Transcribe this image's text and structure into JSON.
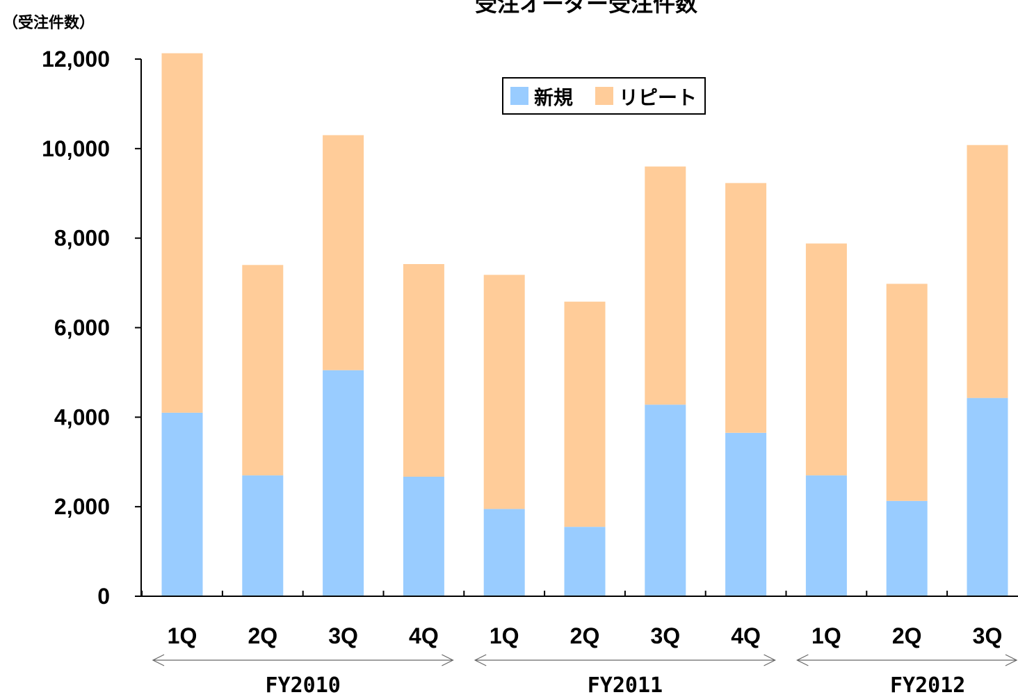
{
  "chart_data": {
    "type": "bar",
    "stacked": true,
    "title": "受注オーダー受注件数",
    "ylabel": "（受注件数）",
    "xlabel": "",
    "ylim": [
      0,
      12000
    ],
    "yticks": [
      0,
      2000,
      4000,
      6000,
      8000,
      10000,
      12000
    ],
    "ytick_labels": [
      "0",
      "2,000",
      "4,000",
      "6,000",
      "8,000",
      "10,000",
      "12,000"
    ],
    "categories": [
      "1Q",
      "2Q",
      "3Q",
      "4Q",
      "1Q",
      "2Q",
      "3Q",
      "4Q",
      "1Q",
      "2Q",
      "3Q"
    ],
    "groups": [
      {
        "label": "FY2010",
        "start": 0,
        "end": 3
      },
      {
        "label": "FY2011",
        "start": 4,
        "end": 7
      },
      {
        "label": "FY2012",
        "start": 8,
        "end": 10
      }
    ],
    "series": [
      {
        "name": "新規",
        "color": "#99ccff",
        "values": [
          4100,
          2700,
          5050,
          2670,
          1950,
          1550,
          4280,
          3650,
          2700,
          2130,
          4430
        ]
      },
      {
        "name": "リピート",
        "color": "#ffcc99",
        "values": [
          8030,
          4700,
          5250,
          4750,
          5230,
          5030,
          5320,
          5580,
          5180,
          4850,
          5650
        ]
      }
    ],
    "legend": "top-center",
    "grid": false
  }
}
